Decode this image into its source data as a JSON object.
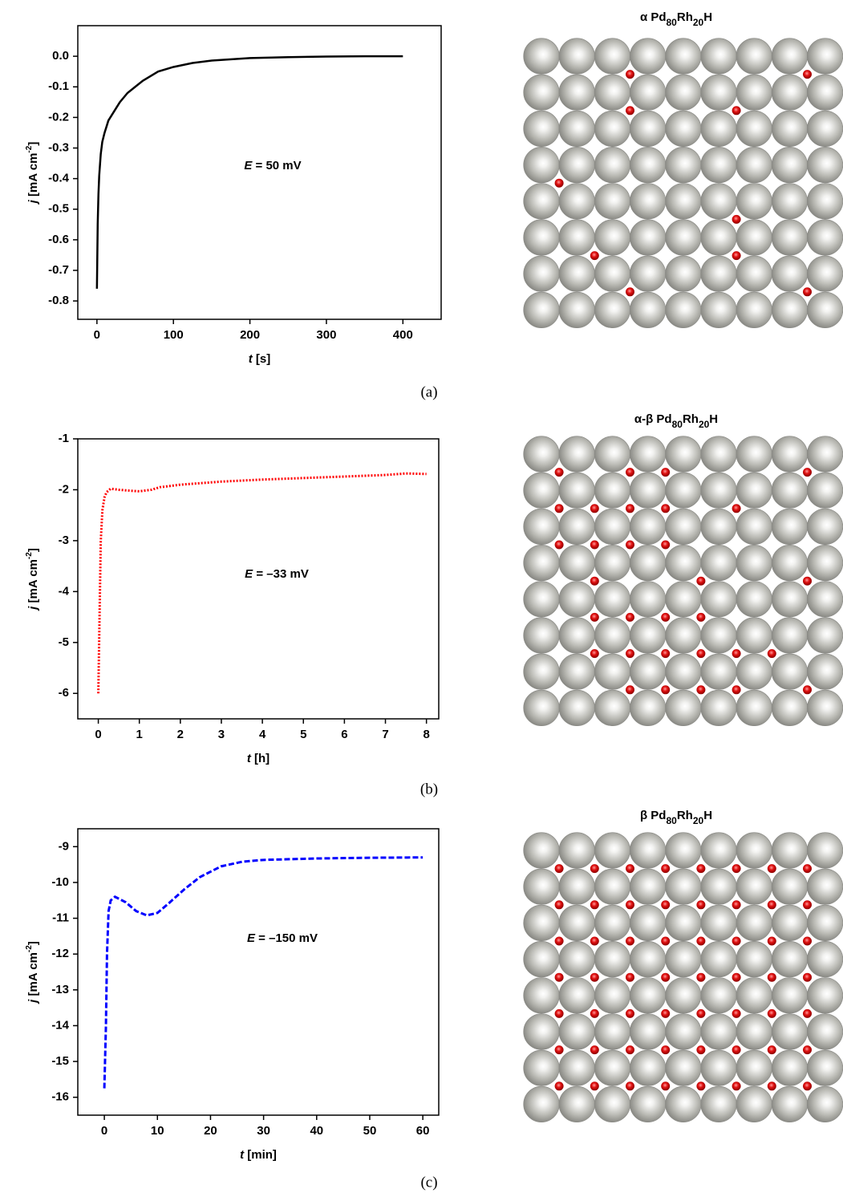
{
  "chart_data": [
    {
      "type": "line",
      "panel_label": "(a)",
      "annotation": [
        {
          "text": "E",
          "italic": true
        },
        {
          "text": " = 50 mV"
        }
      ],
      "x_label": [
        {
          "text": "t",
          "italic": true
        },
        {
          "text": " [s]"
        }
      ],
      "y_label": [
        {
          "text": "j",
          "italic": true
        },
        {
          "text": " [mA cm"
        },
        {
          "text": "-2",
          "sup": true
        },
        {
          "text": "]"
        }
      ],
      "xlim": [
        -25,
        450
      ],
      "xticks": [
        0,
        100,
        200,
        300,
        400
      ],
      "ylim": [
        -0.86,
        0.1
      ],
      "yticks": [
        {
          "value": 0,
          "label": "0.0"
        },
        -0.1,
        -0.2,
        -0.3,
        -0.4,
        -0.5,
        -0.6,
        -0.7,
        -0.8
      ],
      "series": [
        {
          "color": "#000000",
          "line_style": "solid",
          "x": [
            0,
            1,
            2,
            3,
            5,
            7,
            10,
            15,
            20,
            25,
            30,
            40,
            50,
            60,
            80,
            100,
            125,
            150,
            200,
            250,
            300,
            350,
            400
          ],
          "values": [
            -0.76,
            -0.55,
            -0.45,
            -0.39,
            -0.32,
            -0.28,
            -0.25,
            -0.21,
            -0.19,
            -0.17,
            -0.15,
            -0.12,
            -0.1,
            -0.08,
            -0.05,
            -0.035,
            -0.022,
            -0.014,
            -0.006,
            -0.003,
            -0.001,
            0,
            0
          ]
        }
      ]
    },
    {
      "type": "line",
      "panel_label": "(b)",
      "annotation": [
        {
          "text": "E",
          "italic": true
        },
        {
          "text": " = –33 mV"
        }
      ],
      "x_label": [
        {
          "text": "t",
          "italic": true
        },
        {
          "text": " [h]"
        }
      ],
      "y_label": [
        {
          "text": "j",
          "italic": true
        },
        {
          "text": " [mA cm"
        },
        {
          "text": "-2",
          "sup": true
        },
        {
          "text": "]"
        }
      ],
      "xlim": [
        -0.5,
        8.3
      ],
      "xticks": [
        0,
        1,
        2,
        3,
        4,
        5,
        6,
        7,
        8
      ],
      "ylim": [
        -6.5,
        -1
      ],
      "yticks": [
        -6,
        -5,
        -4,
        -3,
        -2,
        -1
      ],
      "series": [
        {
          "color": "#ff0000",
          "line_style": "dotted",
          "x": [
            0,
            0.02,
            0.04,
            0.06,
            0.1,
            0.15,
            0.2,
            0.3,
            0.5,
            0.8,
            1.0,
            1.3,
            1.5,
            2,
            2.5,
            3,
            3.5,
            4,
            5,
            6,
            7,
            7.5,
            8
          ],
          "values": [
            -6.0,
            -5.0,
            -4.0,
            -3.0,
            -2.4,
            -2.15,
            -2.05,
            -1.98,
            -2.0,
            -2.02,
            -2.03,
            -2.0,
            -1.95,
            -1.9,
            -1.87,
            -1.84,
            -1.82,
            -1.8,
            -1.77,
            -1.74,
            -1.71,
            -1.68,
            -1.69
          ]
        }
      ]
    },
    {
      "type": "line",
      "panel_label": "(c)",
      "annotation": [
        {
          "text": "E",
          "italic": true
        },
        {
          "text": " = –150 mV"
        }
      ],
      "x_label": [
        {
          "text": "t",
          "italic": true
        },
        {
          "text": " [min]"
        }
      ],
      "y_label": [
        {
          "text": "j",
          "italic": true
        },
        {
          "text": " [mA cm"
        },
        {
          "text": "-2",
          "sup": true
        },
        {
          "text": "]"
        }
      ],
      "xlim": [
        -5,
        63
      ],
      "xticks": [
        0,
        10,
        20,
        30,
        40,
        50,
        60
      ],
      "ylim": [
        -16.5,
        -8.5
      ],
      "yticks": [
        -16,
        -15,
        -14,
        -13,
        -12,
        -11,
        -10,
        -9
      ],
      "series": [
        {
          "color": "#0000ff",
          "line_style": "dashed",
          "x": [
            0,
            0.3,
            0.5,
            0.8,
            1.2,
            2,
            4,
            6,
            8,
            10,
            12,
            15,
            18,
            22,
            26,
            30,
            35,
            40,
            50,
            60
          ],
          "values": [
            -15.75,
            -14,
            -12,
            -10.8,
            -10.5,
            -10.4,
            -10.55,
            -10.8,
            -10.92,
            -10.85,
            -10.6,
            -10.2,
            -9.85,
            -9.55,
            -9.42,
            -9.37,
            -9.35,
            -9.33,
            -9.31,
            -9.3
          ]
        }
      ]
    }
  ],
  "structures": [
    {
      "title": [
        {
          "text": "α Pd"
        },
        {
          "text": "80",
          "sub": true
        },
        {
          "text": "Rh"
        },
        {
          "text": "20",
          "sub": true
        },
        {
          "text": "H"
        }
      ]
    },
    {
      "title": [
        {
          "text": "α-β Pd"
        },
        {
          "text": "80",
          "sub": true
        },
        {
          "text": "Rh"
        },
        {
          "text": "20",
          "sub": true
        },
        {
          "text": "H"
        }
      ]
    },
    {
      "title": [
        {
          "text": "β Pd"
        },
        {
          "text": "80",
          "sub": true
        },
        {
          "text": "Rh"
        },
        {
          "text": "20",
          "sub": true
        },
        {
          "text": "H"
        }
      ]
    }
  ]
}
